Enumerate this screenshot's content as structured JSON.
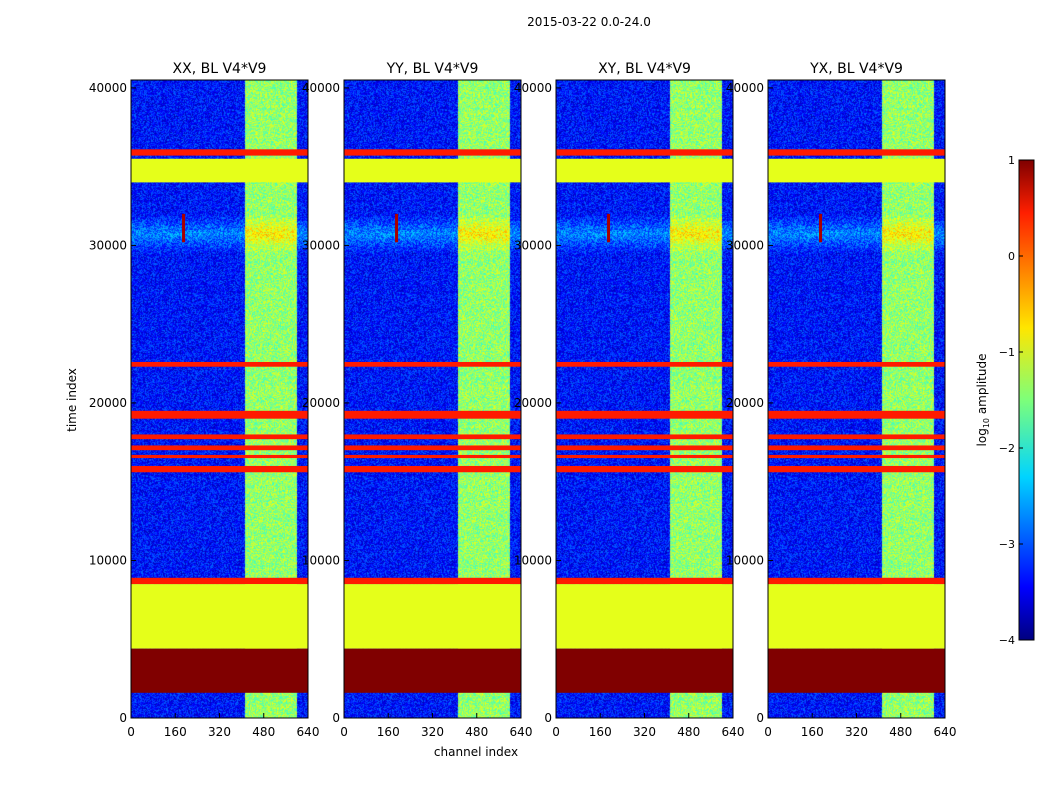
{
  "suptitle": "2015-03-22 0.0-24.0",
  "chart_data": {
    "type": "heatmap",
    "xlabel": "channel index",
    "ylabel": "time index",
    "xlim": [
      0,
      640
    ],
    "ylim": [
      0,
      40500
    ],
    "xticks": [
      "0",
      "160",
      "320",
      "480",
      "640"
    ],
    "yticks": [
      "0",
      "10000",
      "20000",
      "30000",
      "40000"
    ],
    "panels": [
      {
        "title": "XX, BL V4*V9"
      },
      {
        "title": "YY, BL V4*V9"
      },
      {
        "title": "XY, BL V4*V9"
      },
      {
        "title": "YX, BL V4*V9"
      }
    ],
    "colorbar": {
      "label": "log10 amplitude",
      "label_main": "log",
      "label_sub": "10",
      "label_tail": " amplitude",
      "range": [
        -4,
        1
      ],
      "ticks": [
        "−4",
        "−3",
        "−2",
        "−1",
        "0",
        "1"
      ]
    },
    "bands": [
      {
        "t0": 35700,
        "t1": 36100,
        "value": 0.25
      },
      {
        "t0": 34000,
        "t1": 35500,
        "value": -1.0
      },
      {
        "t0": 22300,
        "t1": 22600,
        "value": 0.25
      },
      {
        "t0": 19000,
        "t1": 19500,
        "value": 0.25
      },
      {
        "t0": 17700,
        "t1": 18000,
        "value": 0.25
      },
      {
        "t0": 17000,
        "t1": 17300,
        "value": 0.25
      },
      {
        "t0": 16500,
        "t1": 16700,
        "value": 0.25
      },
      {
        "t0": 15600,
        "t1": 16000,
        "value": 0.25
      },
      {
        "t0": 8500,
        "t1": 8900,
        "value": 0.25
      },
      {
        "t0": 4400,
        "t1": 8500,
        "value": -1.0
      },
      {
        "t0": 1600,
        "t1": 4400,
        "value": 1.0
      }
    ]
  }
}
